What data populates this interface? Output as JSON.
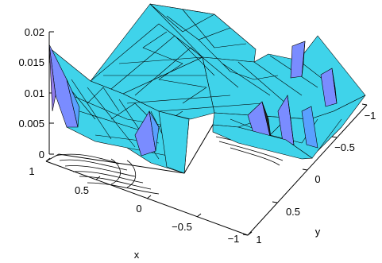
{
  "chart_data": {
    "type": "surface",
    "title": "",
    "xlabel": "x",
    "ylabel": "y",
    "zlabel": "",
    "xlim": [
      -1,
      1
    ],
    "ylim": [
      -1,
      1
    ],
    "zlim": [
      0,
      0.02
    ],
    "x_ticks": [
      "1",
      "0.5",
      "0",
      "−0.5",
      "−1"
    ],
    "y_ticks": [
      "−1",
      "−0.5",
      "0",
      "0.5",
      "1"
    ],
    "z_ticks": [
      "0",
      "0.005",
      "0.01",
      "0.015",
      "0.02"
    ],
    "surface_color": "#3fd3ea",
    "highlight_color": "#7a8cff",
    "edge_color": "#000000",
    "contour_color": "#000000",
    "domain": "L-shaped (one quadrant removed)",
    "grid": false
  }
}
